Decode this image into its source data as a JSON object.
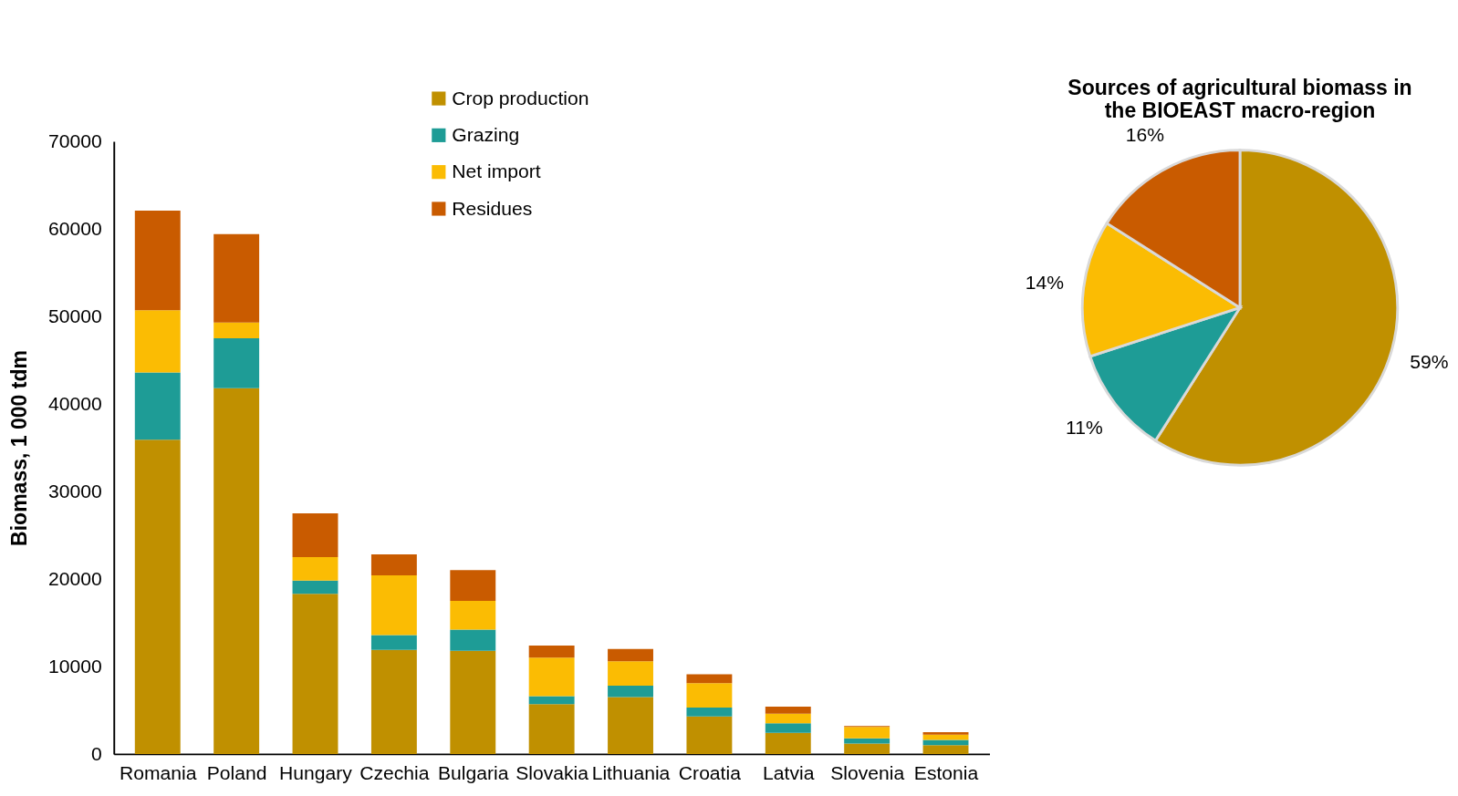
{
  "chart_data": [
    {
      "type": "bar",
      "stacked": true,
      "ylabel": "Biomass, 1 000 tdm",
      "categories": [
        "Romania",
        "Poland",
        "Hungary",
        "Czechia",
        "Bulgaria",
        "Slovakia",
        "Lithuania",
        "Croatia",
        "Latvia",
        "Slovenia",
        "Estonia"
      ],
      "series": [
        {
          "name": "Crop production",
          "color": "#c09000",
          "values": [
            35900,
            41800,
            18300,
            11900,
            11800,
            5700,
            6500,
            4300,
            2400,
            1200,
            1000
          ]
        },
        {
          "name": "Grazing",
          "color": "#1e9c96",
          "values": [
            7700,
            5700,
            1500,
            1700,
            2400,
            900,
            1300,
            1000,
            1100,
            600,
            600
          ]
        },
        {
          "name": "Net import",
          "color": "#fbbc03",
          "values": [
            7100,
            1800,
            2700,
            6800,
            3300,
            4400,
            2800,
            2800,
            1100,
            1300,
            600
          ]
        },
        {
          "name": "Residues",
          "color": "#c95b00",
          "values": [
            11400,
            10100,
            5000,
            2400,
            3500,
            1400,
            1400,
            1000,
            800,
            100,
            300
          ]
        }
      ],
      "ylim": [
        0,
        70000
      ],
      "yticks": [
        0,
        10000,
        20000,
        30000,
        40000,
        50000,
        60000,
        70000
      ],
      "grid": false,
      "legend": "top"
    },
    {
      "type": "pie",
      "title": "Sources of agricultural biomass in the BIOEAST macro-region",
      "categories": [
        null,
        null,
        null,
        null
      ],
      "values": [
        59,
        11,
        14,
        16
      ],
      "colors": [
        "#c09000",
        "#1e9c96",
        "#fbbc03",
        "#c95b00"
      ],
      "value_labels": [
        "59%",
        "11%",
        "14%",
        "16%"
      ],
      "legend": false
    }
  ]
}
